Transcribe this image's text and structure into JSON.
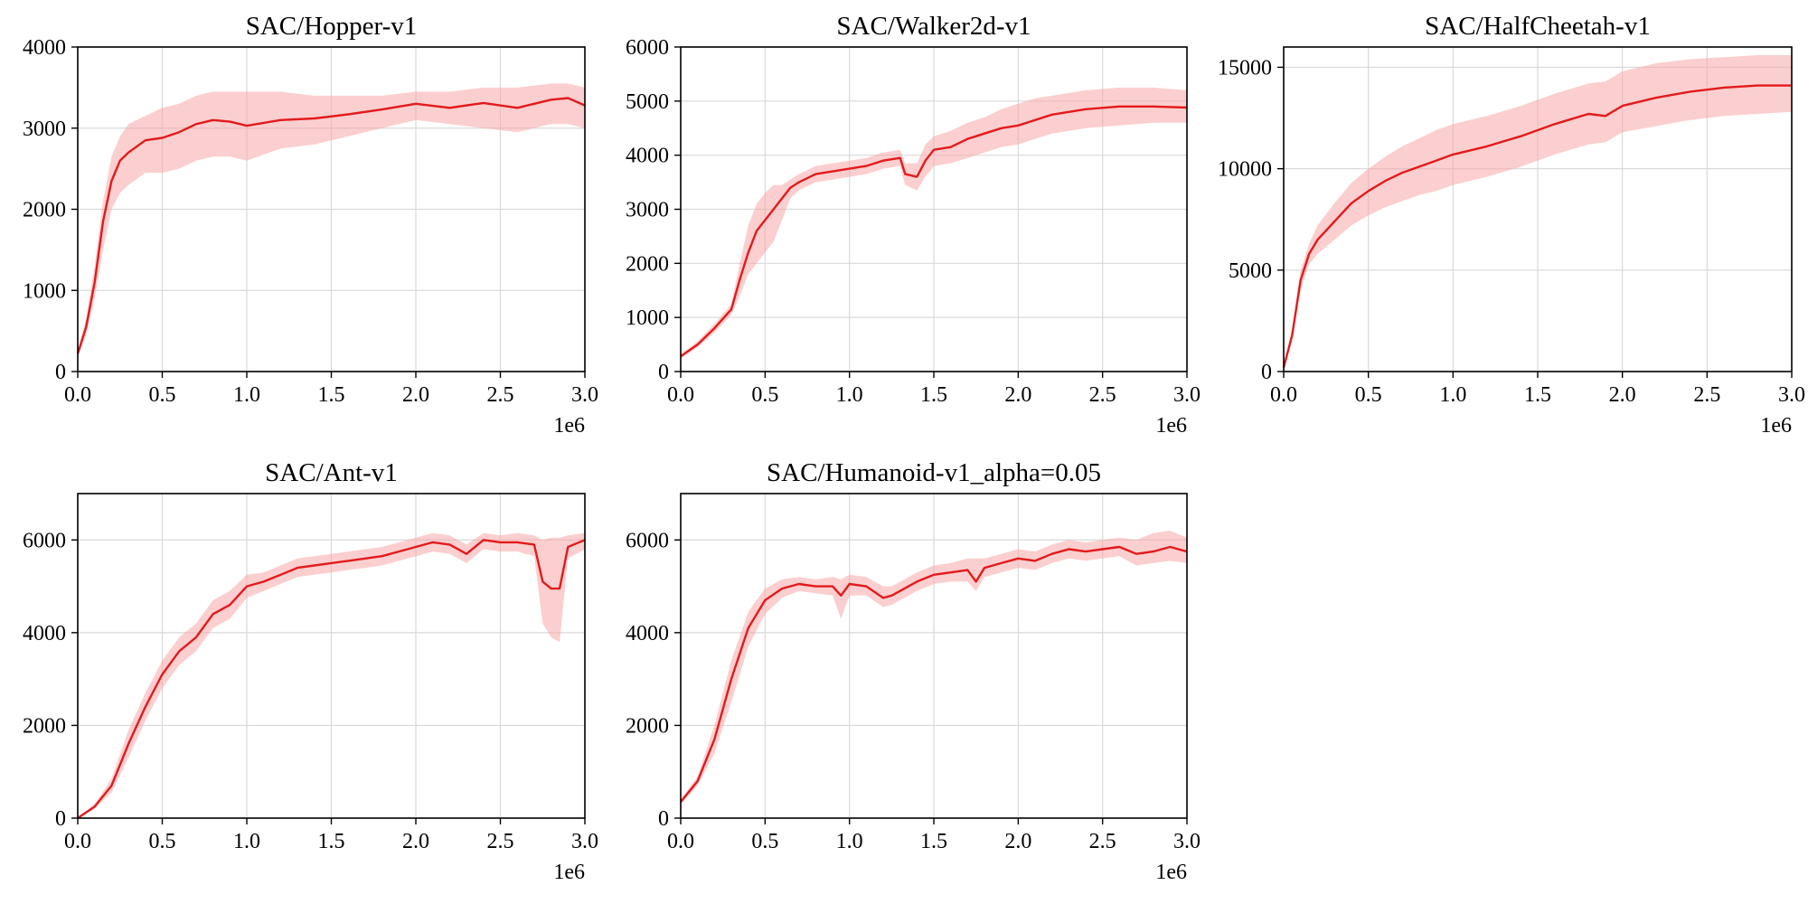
{
  "colors": {
    "line": "#e31a1c",
    "band": "#f7a8a8",
    "grid": "#d9d9d9",
    "axis": "#000000"
  },
  "chart_data": [
    {
      "type": "line",
      "title": "SAC/Hopper-v1",
      "xlabel": "",
      "ylabel": "",
      "xlim": [
        0,
        3.0
      ],
      "ylim": [
        0,
        4000
      ],
      "xticks": [
        "0.0",
        "0.5",
        "1.0",
        "1.5",
        "2.0",
        "2.5",
        "3.0"
      ],
      "yticks": [
        "0",
        "1000",
        "2000",
        "3000",
        "4000"
      ],
      "x_offset_label": "1e6",
      "grid": true,
      "x": [
        0.0,
        0.05,
        0.1,
        0.15,
        0.2,
        0.25,
        0.3,
        0.4,
        0.5,
        0.6,
        0.7,
        0.8,
        0.9,
        1.0,
        1.2,
        1.4,
        1.6,
        1.8,
        2.0,
        2.2,
        2.4,
        2.6,
        2.8,
        2.9,
        3.0
      ],
      "mean": [
        220,
        550,
        1100,
        1850,
        2350,
        2600,
        2700,
        2850,
        2880,
        2950,
        3050,
        3100,
        3080,
        3030,
        3100,
        3120,
        3170,
        3230,
        3300,
        3250,
        3310,
        3250,
        3350,
        3370,
        3280
      ],
      "lower": [
        180,
        450,
        900,
        1500,
        2000,
        2200,
        2300,
        2450,
        2450,
        2500,
        2600,
        2650,
        2650,
        2600,
        2750,
        2800,
        2900,
        3000,
        3100,
        3050,
        3000,
        2950,
        3050,
        3050,
        3000
      ],
      "upper": [
        260,
        650,
        1300,
        2100,
        2650,
        2900,
        3050,
        3150,
        3250,
        3300,
        3400,
        3450,
        3450,
        3450,
        3450,
        3400,
        3400,
        3400,
        3450,
        3450,
        3500,
        3500,
        3550,
        3550,
        3500
      ]
    },
    {
      "type": "line",
      "title": "SAC/Walker2d-v1",
      "xlabel": "",
      "ylabel": "",
      "xlim": [
        0,
        3.0
      ],
      "ylim": [
        0,
        6000
      ],
      "xticks": [
        "0.0",
        "0.5",
        "1.0",
        "1.5",
        "2.0",
        "2.5",
        "3.0"
      ],
      "yticks": [
        "0",
        "1000",
        "2000",
        "3000",
        "4000",
        "5000",
        "6000"
      ],
      "x_offset_label": "1e6",
      "grid": true,
      "x": [
        0.0,
        0.1,
        0.2,
        0.3,
        0.35,
        0.4,
        0.45,
        0.5,
        0.55,
        0.6,
        0.65,
        0.7,
        0.8,
        0.9,
        1.0,
        1.1,
        1.2,
        1.3,
        1.33,
        1.4,
        1.45,
        1.5,
        1.6,
        1.7,
        1.8,
        1.9,
        2.0,
        2.1,
        2.2,
        2.4,
        2.6,
        2.8,
        3.0
      ],
      "mean": [
        280,
        500,
        800,
        1150,
        1700,
        2200,
        2600,
        2800,
        3000,
        3200,
        3400,
        3500,
        3650,
        3700,
        3750,
        3800,
        3900,
        3950,
        3650,
        3600,
        3900,
        4100,
        4150,
        4300,
        4400,
        4500,
        4550,
        4650,
        4750,
        4850,
        4900,
        4900,
        4880
      ],
      "lower": [
        240,
        450,
        720,
        1050,
        1400,
        1800,
        2000,
        2200,
        2400,
        2800,
        3200,
        3350,
        3500,
        3550,
        3600,
        3650,
        3750,
        3800,
        3450,
        3350,
        3600,
        3800,
        3850,
        3950,
        4050,
        4150,
        4200,
        4300,
        4400,
        4500,
        4550,
        4600,
        4600
      ],
      "upper": [
        320,
        560,
        880,
        1250,
        2000,
        2700,
        3100,
        3300,
        3450,
        3450,
        3550,
        3650,
        3800,
        3850,
        3900,
        3950,
        4050,
        4100,
        3850,
        3850,
        4200,
        4350,
        4450,
        4600,
        4700,
        4850,
        4950,
        5050,
        5100,
        5200,
        5250,
        5250,
        5200
      ]
    },
    {
      "type": "line",
      "title": "SAC/HalfCheetah-v1",
      "xlabel": "",
      "ylabel": "",
      "xlim": [
        0,
        3.0
      ],
      "ylim": [
        0,
        16000
      ],
      "xticks": [
        "0.0",
        "0.5",
        "1.0",
        "1.5",
        "2.0",
        "2.5",
        "3.0"
      ],
      "yticks": [
        "0",
        "5000",
        "10000",
        "15000"
      ],
      "x_offset_label": "1e6",
      "grid": true,
      "x": [
        0.0,
        0.05,
        0.1,
        0.15,
        0.2,
        0.3,
        0.4,
        0.5,
        0.6,
        0.7,
        0.8,
        0.9,
        1.0,
        1.2,
        1.4,
        1.6,
        1.8,
        1.9,
        2.0,
        2.2,
        2.4,
        2.6,
        2.8,
        3.0
      ],
      "mean": [
        200,
        1800,
        4500,
        5800,
        6500,
        7400,
        8300,
        8900,
        9400,
        9800,
        10100,
        10400,
        10700,
        11100,
        11600,
        12200,
        12700,
        12600,
        13100,
        13500,
        13800,
        14000,
        14100,
        14100
      ],
      "lower": [
        150,
        1500,
        4000,
        5300,
        5800,
        6500,
        7200,
        7700,
        8100,
        8400,
        8700,
        8900,
        9200,
        9600,
        10100,
        10700,
        11200,
        11300,
        11800,
        12100,
        12400,
        12600,
        12700,
        12800
      ],
      "upper": [
        250,
        2100,
        5000,
        6300,
        7200,
        8300,
        9300,
        10000,
        10600,
        11100,
        11500,
        11900,
        12200,
        12600,
        13100,
        13700,
        14200,
        14300,
        14800,
        15200,
        15400,
        15500,
        15600,
        15600
      ]
    },
    {
      "type": "line",
      "title": "SAC/Ant-v1",
      "xlabel": "",
      "ylabel": "",
      "xlim": [
        0,
        3.0
      ],
      "ylim": [
        0,
        7000
      ],
      "xticks": [
        "0.0",
        "0.5",
        "1.0",
        "1.5",
        "2.0",
        "2.5",
        "3.0"
      ],
      "yticks": [
        "0",
        "2000",
        "4000",
        "6000"
      ],
      "x_offset_label": "1e6",
      "grid": true,
      "x": [
        0.0,
        0.1,
        0.2,
        0.3,
        0.4,
        0.5,
        0.6,
        0.7,
        0.8,
        0.9,
        1.0,
        1.1,
        1.2,
        1.3,
        1.4,
        1.5,
        1.6,
        1.7,
        1.8,
        1.9,
        2.0,
        2.1,
        2.2,
        2.3,
        2.4,
        2.5,
        2.6,
        2.7,
        2.75,
        2.8,
        2.85,
        2.9,
        3.0
      ],
      "mean": [
        0,
        250,
        700,
        1600,
        2400,
        3100,
        3600,
        3900,
        4400,
        4600,
        5000,
        5100,
        5250,
        5400,
        5450,
        5500,
        5550,
        5600,
        5650,
        5750,
        5850,
        5950,
        5900,
        5700,
        6000,
        5950,
        5950,
        5900,
        5100,
        4950,
        4950,
        5850,
        6000
      ],
      "lower": [
        0,
        200,
        550,
        1300,
        2100,
        2800,
        3300,
        3600,
        4100,
        4300,
        4750,
        4900,
        5050,
        5200,
        5250,
        5300,
        5350,
        5400,
        5450,
        5550,
        5650,
        5750,
        5700,
        5500,
        5800,
        5750,
        5750,
        5650,
        4200,
        3900,
        3800,
        5600,
        5800
      ],
      "upper": [
        0,
        300,
        850,
        1900,
        2700,
        3400,
        3900,
        4200,
        4700,
        4900,
        5250,
        5300,
        5450,
        5600,
        5650,
        5700,
        5750,
        5800,
        5850,
        5950,
        6050,
        6150,
        6100,
        5900,
        6150,
        6100,
        6150,
        6100,
        6000,
        6050,
        6050,
        6100,
        6150
      ]
    },
    {
      "type": "line",
      "title": "SAC/Humanoid-v1_alpha=0.05",
      "xlabel": "",
      "ylabel": "",
      "xlim": [
        0,
        3.0
      ],
      "ylim": [
        0,
        7000
      ],
      "xticks": [
        "0.0",
        "0.5",
        "1.0",
        "1.5",
        "2.0",
        "2.5",
        "3.0"
      ],
      "yticks": [
        "0",
        "2000",
        "4000",
        "6000"
      ],
      "x_offset_label": "1e6",
      "grid": true,
      "x": [
        0.0,
        0.1,
        0.2,
        0.3,
        0.4,
        0.5,
        0.6,
        0.7,
        0.8,
        0.9,
        0.95,
        1.0,
        1.1,
        1.2,
        1.25,
        1.3,
        1.4,
        1.5,
        1.6,
        1.7,
        1.75,
        1.8,
        1.9,
        2.0,
        2.1,
        2.2,
        2.3,
        2.4,
        2.5,
        2.6,
        2.7,
        2.8,
        2.9,
        3.0
      ],
      "mean": [
        350,
        800,
        1700,
        3000,
        4100,
        4700,
        4950,
        5050,
        5000,
        5000,
        4800,
        5050,
        5000,
        4750,
        4800,
        4900,
        5100,
        5250,
        5300,
        5350,
        5100,
        5400,
        5500,
        5600,
        5550,
        5700,
        5800,
        5750,
        5800,
        5850,
        5700,
        5750,
        5850,
        5750
      ],
      "lower": [
        300,
        700,
        1400,
        2500,
        3700,
        4400,
        4750,
        4900,
        4850,
        4800,
        4300,
        4800,
        4800,
        4550,
        4600,
        4700,
        4900,
        5050,
        5100,
        5100,
        4900,
        5200,
        5300,
        5400,
        5350,
        5500,
        5600,
        5550,
        5600,
        5650,
        5450,
        5500,
        5550,
        5500
      ],
      "upper": [
        400,
        900,
        2000,
        3400,
        4450,
        4950,
        5150,
        5200,
        5150,
        5200,
        5150,
        5250,
        5200,
        5000,
        5000,
        5100,
        5300,
        5450,
        5500,
        5600,
        5600,
        5600,
        5700,
        5800,
        5750,
        5900,
        6000,
        5950,
        6000,
        6050,
        6000,
        6150,
        6200,
        6050
      ]
    }
  ]
}
